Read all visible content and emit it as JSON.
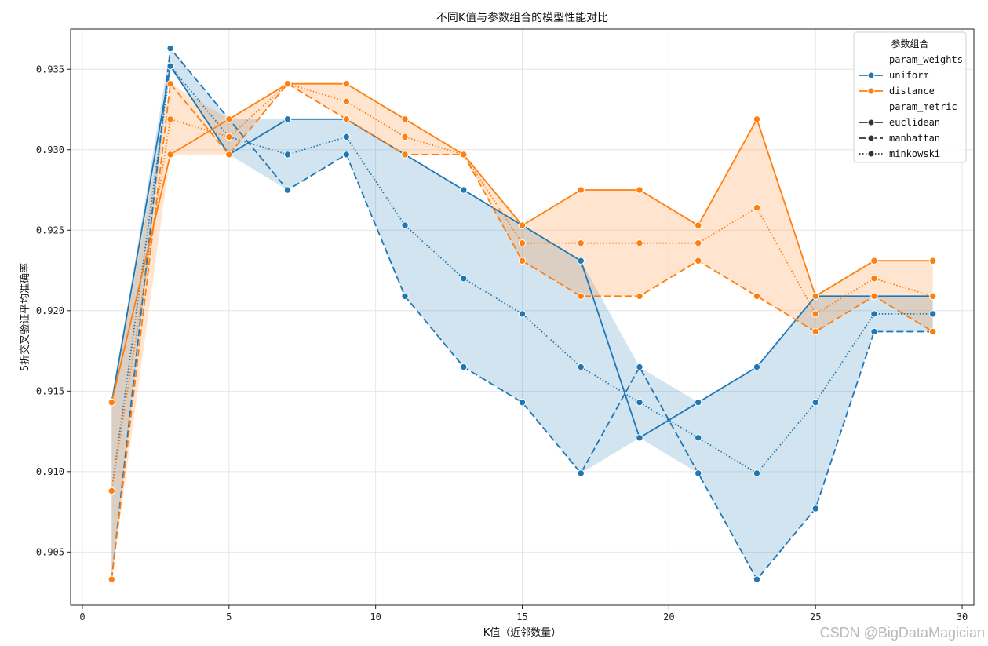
{
  "chart_data": {
    "type": "line",
    "title": "不同K值与参数组合的模型性能对比",
    "xlabel": "K值（近邻数量）",
    "ylabel": "5折交叉验证平均准确率",
    "xlim": [
      -0.4,
      30.4
    ],
    "ylim": [
      0.9017,
      0.9375
    ],
    "xticks": [
      "0",
      "5",
      "10",
      "15",
      "20",
      "25",
      "30"
    ],
    "yticks": [
      "0.905",
      "0.910",
      "0.915",
      "0.920",
      "0.925",
      "0.930",
      "0.935"
    ],
    "grid": true,
    "legend_position": "top-right",
    "legend": {
      "title": "参数组合",
      "hue_title": "param_weights",
      "style_title": "param_metric",
      "hue_entries": [
        {
          "label": "uniform",
          "color": "#1f77b4"
        },
        {
          "label": "distance",
          "color": "#ff7f0e"
        }
      ],
      "style_entries": [
        {
          "label": "euclidean",
          "dash": "solid"
        },
        {
          "label": "manhattan",
          "dash": "dashed"
        },
        {
          "label": "minkowski",
          "dash": "dotted"
        }
      ]
    },
    "x": [
      1,
      3,
      5,
      7,
      9,
      11,
      13,
      15,
      17,
      19,
      21,
      23,
      25,
      27,
      29
    ],
    "series": [
      {
        "name": "uniform",
        "metric": "euclidean",
        "color": "#1f77b4",
        "dash": "solid",
        "values": [
          0.9143,
          0.9352,
          0.9297,
          0.9319,
          0.9319,
          0.9297,
          0.9275,
          0.9253,
          0.9231,
          0.9121,
          0.9143,
          0.9165,
          0.9209,
          0.9209,
          0.9209
        ]
      },
      {
        "name": "uniform",
        "metric": "manhattan",
        "color": "#1f77b4",
        "dash": "dashed",
        "values": [
          0.9033,
          0.9363,
          0.9319,
          0.9275,
          0.9297,
          0.9209,
          0.9165,
          0.9143,
          0.9099,
          0.9165,
          0.9099,
          0.9033,
          0.9077,
          0.9187,
          0.9187
        ]
      },
      {
        "name": "uniform",
        "metric": "minkowski",
        "color": "#1f77b4",
        "dash": "dotted",
        "values": [
          0.9088,
          0.9352,
          0.9308,
          0.9297,
          0.9308,
          0.9253,
          0.922,
          0.9198,
          0.9165,
          0.9143,
          0.9121,
          0.9099,
          0.9143,
          0.9198,
          0.9198
        ]
      },
      {
        "name": "distance",
        "metric": "euclidean",
        "color": "#ff7f0e",
        "dash": "solid",
        "values": [
          0.9143,
          0.9297,
          0.9319,
          0.9341,
          0.9341,
          0.9319,
          0.9297,
          0.9253,
          0.9275,
          0.9275,
          0.9253,
          0.9319,
          0.9209,
          0.9231,
          0.9231
        ]
      },
      {
        "name": "distance",
        "metric": "manhattan",
        "color": "#ff7f0e",
        "dash": "dashed",
        "values": [
          0.9033,
          0.9341,
          0.9297,
          0.9341,
          0.9319,
          0.9297,
          0.9297,
          0.9231,
          0.9209,
          0.9209,
          0.9231,
          0.9209,
          0.9187,
          0.9209,
          0.9187
        ]
      },
      {
        "name": "distance",
        "metric": "minkowski",
        "color": "#ff7f0e",
        "dash": "dotted",
        "values": [
          0.9088,
          0.9319,
          0.9308,
          0.9341,
          0.933,
          0.9308,
          0.9297,
          0.9242,
          0.9242,
          0.9242,
          0.9242,
          0.9264,
          0.9198,
          0.922,
          0.9209
        ]
      }
    ]
  },
  "watermark": "CSDN @BigDataMagician"
}
